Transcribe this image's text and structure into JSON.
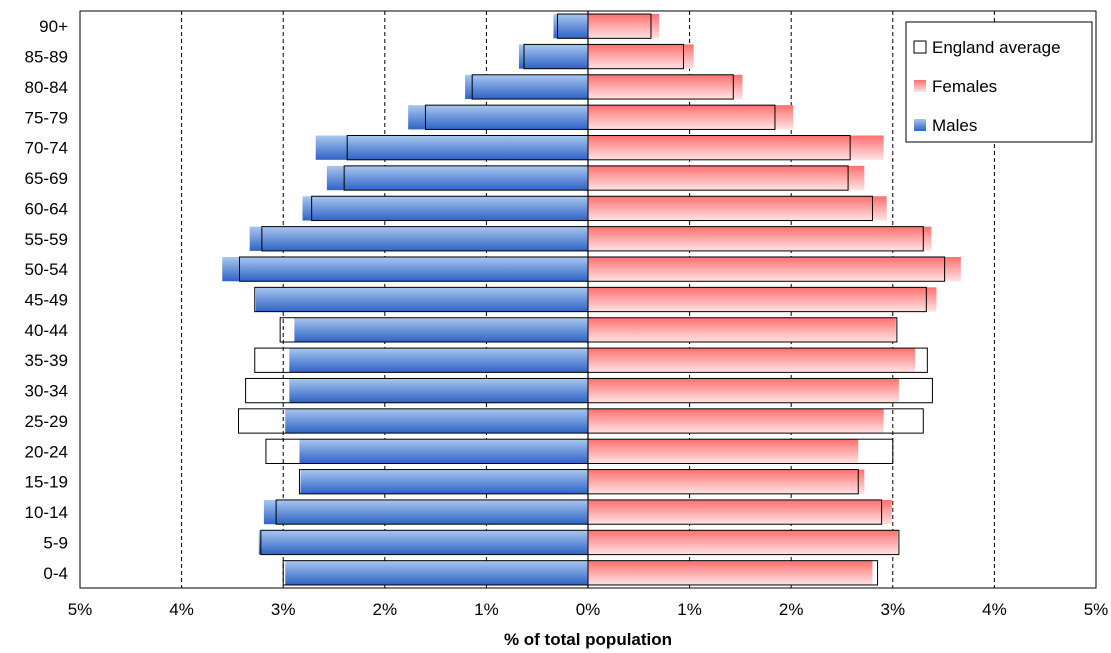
{
  "chart_data": {
    "type": "bar",
    "orientation": "horizontal-pyramid",
    "categories": [
      "0-4",
      "5-9",
      "10-14",
      "15-19",
      "20-24",
      "25-29",
      "30-34",
      "35-39",
      "40-44",
      "45-49",
      "50-54",
      "55-59",
      "60-64",
      "65-69",
      "70-74",
      "75-79",
      "80-84",
      "85-89",
      "90+"
    ],
    "series": [
      {
        "name": "Males",
        "side": "left",
        "color_light": "#a9c7ef",
        "color_dark": "#2e63c6",
        "values": [
          2.98,
          3.24,
          3.19,
          2.83,
          2.84,
          2.98,
          2.94,
          2.94,
          2.89,
          3.27,
          3.6,
          3.33,
          2.81,
          2.57,
          2.68,
          1.77,
          1.21,
          0.68,
          0.34
        ]
      },
      {
        "name": "Females",
        "side": "right",
        "color_light": "#ffe3e3",
        "color_dark": "#ff6f6f",
        "values": [
          2.8,
          3.05,
          2.99,
          2.72,
          2.66,
          2.91,
          3.06,
          3.22,
          3.03,
          3.43,
          3.67,
          3.38,
          2.94,
          2.72,
          2.91,
          2.02,
          1.52,
          1.04,
          0.7
        ]
      },
      {
        "name": "England average",
        "style": "outline",
        "male_values": [
          3.0,
          3.22,
          3.07,
          2.84,
          3.17,
          3.44,
          3.37,
          3.28,
          3.03,
          3.28,
          3.43,
          3.21,
          2.72,
          2.4,
          2.37,
          1.6,
          1.14,
          0.63,
          0.3
        ],
        "female_values": [
          2.85,
          3.06,
          2.89,
          2.66,
          3.0,
          3.3,
          3.39,
          3.34,
          3.04,
          3.33,
          3.51,
          3.3,
          2.8,
          2.56,
          2.58,
          1.84,
          1.43,
          0.94,
          0.62
        ]
      }
    ],
    "xlabel": "% of total population",
    "xlim": [
      -5,
      5
    ],
    "x_tick_values": [
      -5,
      -4,
      -3,
      -2,
      -1,
      0,
      1,
      2,
      3,
      4,
      5
    ],
    "x_tick_labels": [
      "5%",
      "4%",
      "3%",
      "2%",
      "1%",
      "0%",
      "1%",
      "2%",
      "3%",
      "4%",
      "5%"
    ],
    "grid": "vertical dashed",
    "legend": {
      "placement": "top-right",
      "entries": [
        "England average",
        "Females",
        "Males"
      ]
    }
  }
}
